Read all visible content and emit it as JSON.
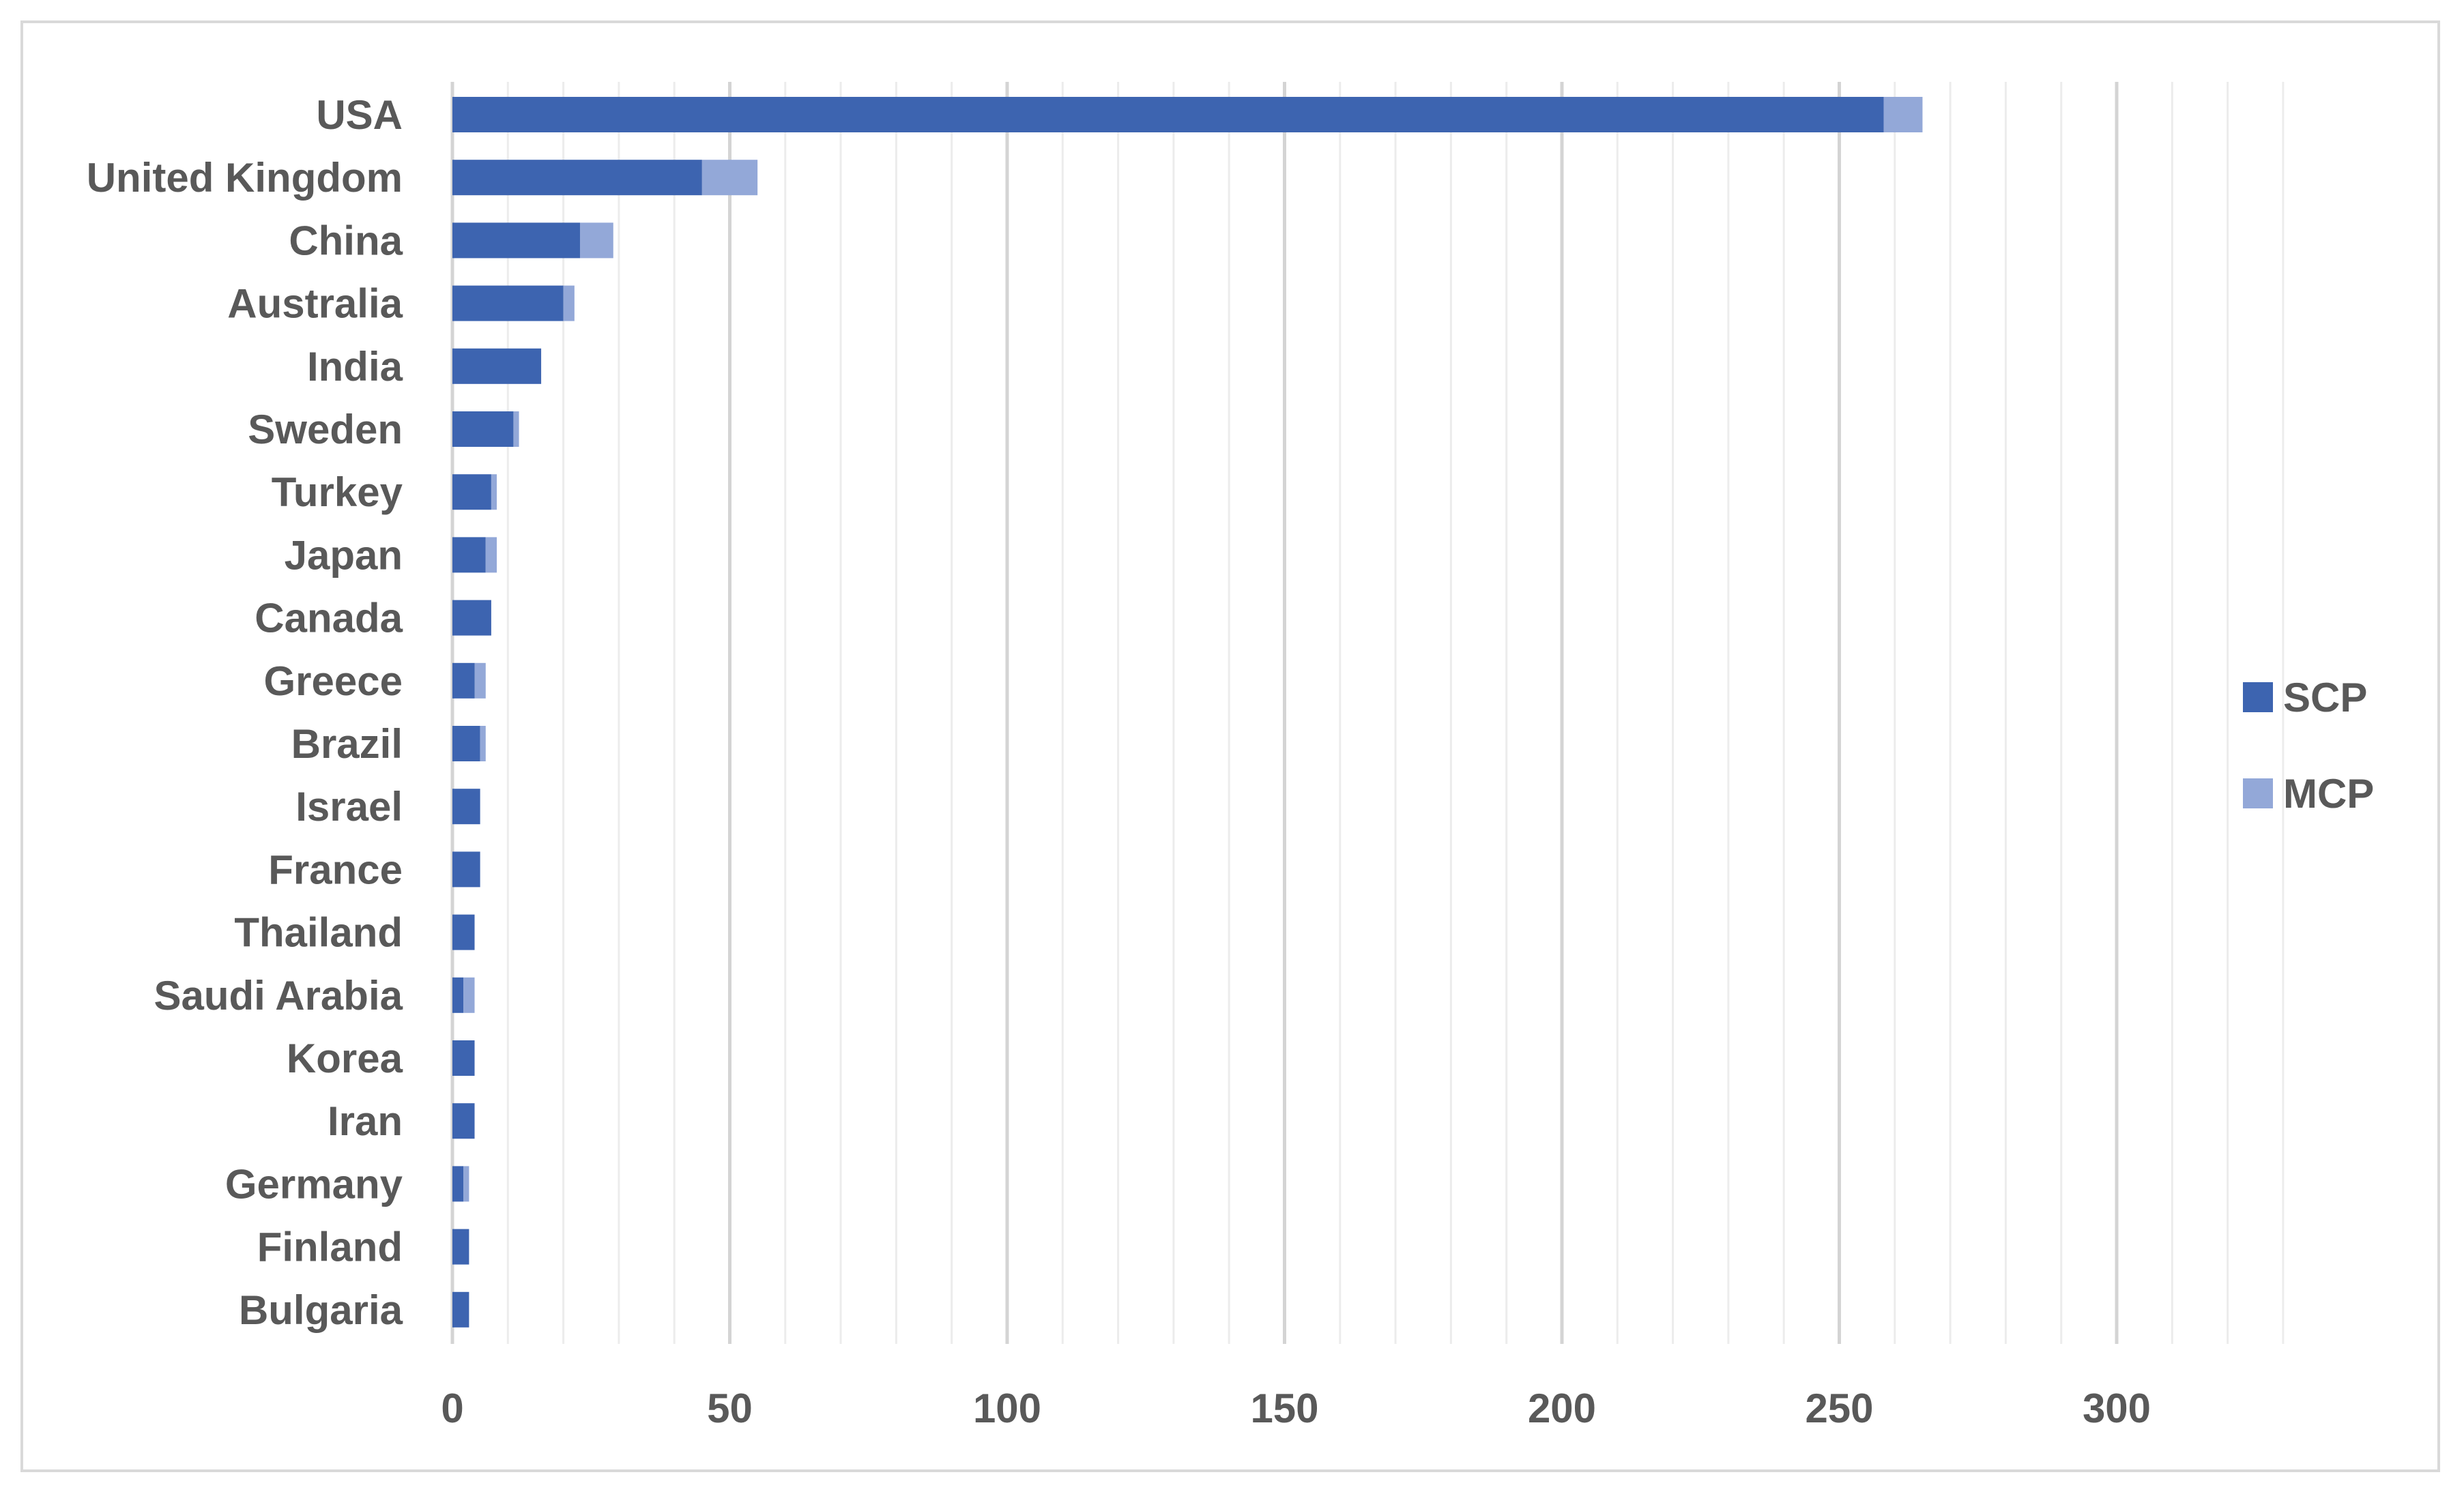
{
  "chart_data": {
    "type": "bar",
    "orientation": "horizontal",
    "stacked": true,
    "categories": [
      "USA",
      "United Kingdom",
      "China",
      "Australia",
      "India",
      "Sweden",
      "Turkey",
      "Japan",
      "Canada",
      "Greece",
      "Brazil",
      "Israel",
      "France",
      "Thailand",
      "Saudi Arabia",
      "Korea",
      "Iran",
      "Germany",
      "Finland",
      "Bulgaria"
    ],
    "series": [
      {
        "name": "SCP",
        "color": "#3d64b0",
        "values": [
          258,
          45,
          23,
          20,
          16,
          11,
          7,
          6,
          7,
          4,
          5,
          5,
          5,
          4,
          2,
          4,
          4,
          2,
          3,
          3
        ]
      },
      {
        "name": "MCP",
        "color": "#93a8d8",
        "values": [
          7,
          10,
          6,
          2,
          0,
          1,
          1,
          2,
          0,
          2,
          1,
          0,
          0,
          0,
          2,
          0,
          0,
          1,
          0,
          0
        ]
      }
    ],
    "xlim": [
      0,
      300
    ],
    "xticks": [
      "0",
      "50",
      "100",
      "150",
      "200",
      "250",
      "300"
    ],
    "major_step": 50,
    "minor_step": 10,
    "grid": true,
    "legend_position": "right",
    "title": "",
    "xlabel": "",
    "ylabel": ""
  }
}
